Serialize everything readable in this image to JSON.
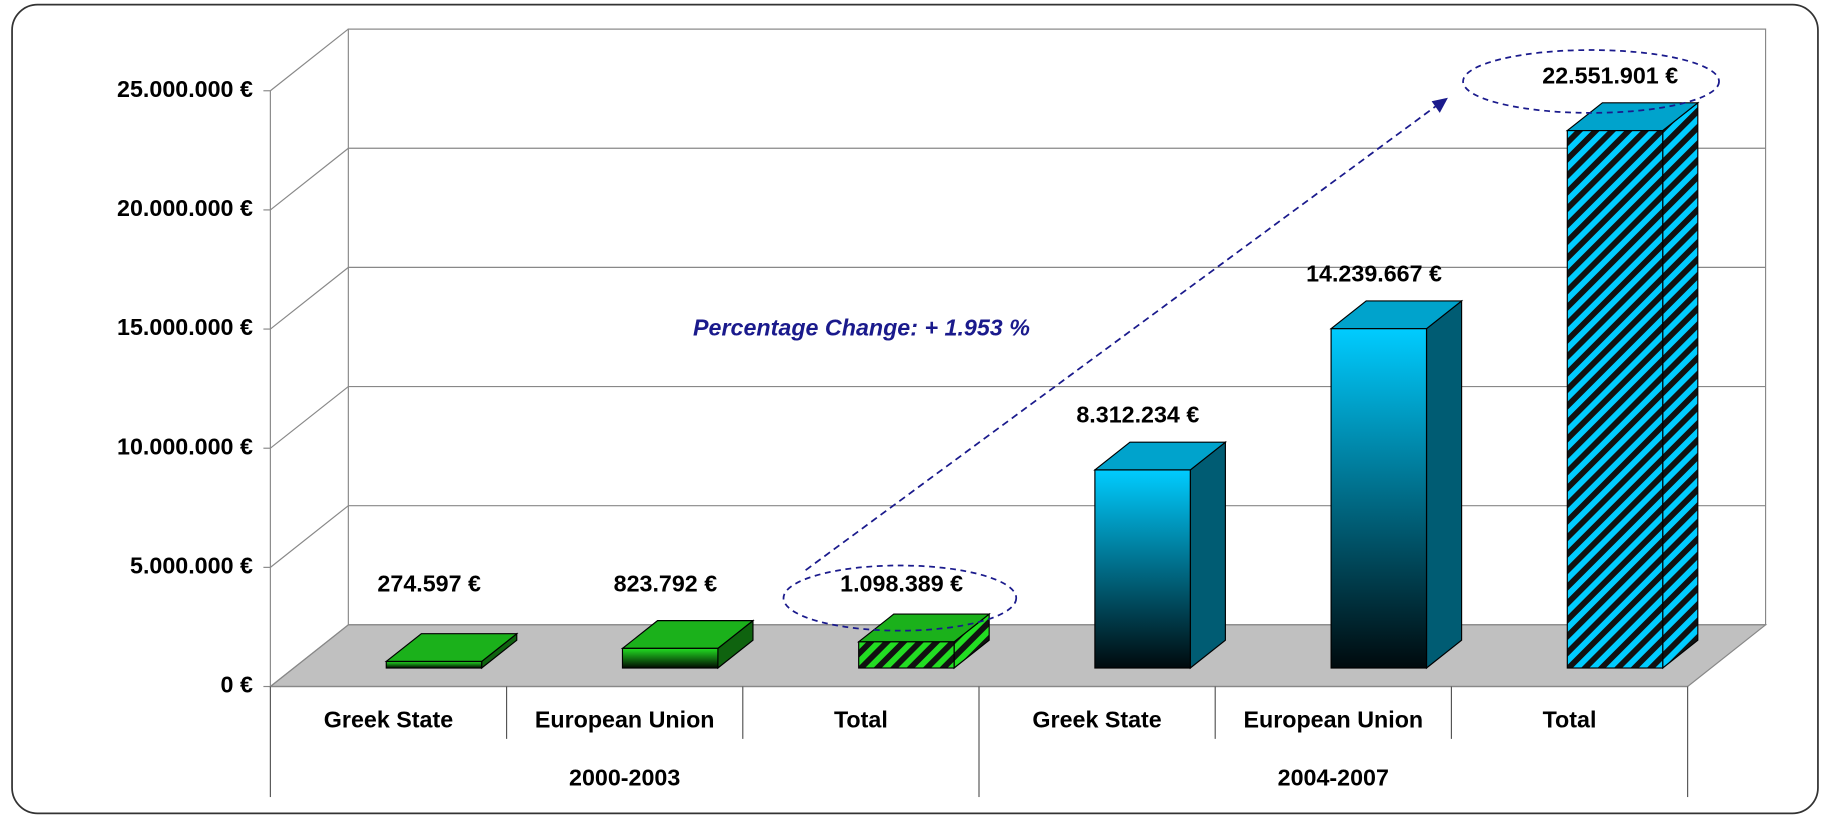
{
  "chart_data": {
    "type": "bar3d",
    "categories": [
      "Greek State",
      "European Union",
      "Total",
      "Greek State",
      "European Union",
      "Total"
    ],
    "groups": [
      "2000-2003",
      "2004-2007"
    ],
    "values": [
      274597,
      823792,
      1098389,
      8312234,
      14239667,
      22551901
    ],
    "value_labels": [
      "274.597 €",
      "823.792 €",
      "1.098.389 €",
      "8.312.234 €",
      "14.239.667 €",
      "22.551.901 €"
    ],
    "colors": [
      "#22dd22",
      "#22dd22",
      "#22dd22",
      "#00ccff",
      "#00ccff",
      "#00ccff"
    ],
    "hatched": [
      false,
      false,
      true,
      false,
      false,
      true
    ],
    "ylim": [
      0,
      25000000
    ],
    "yticks": [
      {
        "value": 0,
        "label": "0 €"
      },
      {
        "value": 5000000,
        "label": "5.000.000 €"
      },
      {
        "value": 10000000,
        "label": "10.000.000 €"
      },
      {
        "value": 15000000,
        "label": "15.000.000 €"
      },
      {
        "value": 20000000,
        "label": "20.000.000 €"
      },
      {
        "value": 25000000,
        "label": "25.000.000 €"
      }
    ],
    "grid": true,
    "annotation": "Percentage Change: + 1.953 %"
  }
}
